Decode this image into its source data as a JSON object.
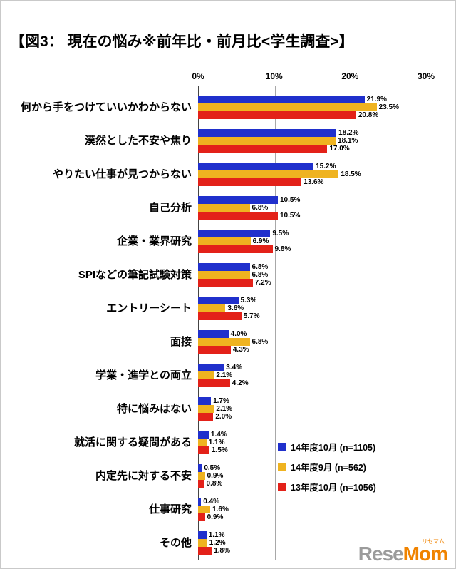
{
  "title": "【図3： 現在の悩み※前年比・前月比<学生調査>】",
  "chart_data": {
    "type": "bar",
    "orientation": "horizontal",
    "xlim": [
      0,
      30
    ],
    "xticks": [
      "0%",
      "10%",
      "20%",
      "30%"
    ],
    "grid": "vertical lines at 10/20/30",
    "legend_position": "inside-right",
    "categories": [
      "何から手をつけていいかわからない",
      "漠然とした不安や焦り",
      "やりたい仕事が見つからない",
      "自己分析",
      "企業・業界研究",
      "SPIなどの筆記試験対策",
      "エントリーシート",
      "面接",
      "学業・進学との両立",
      "特に悩みはない",
      "就活に関する疑問がある",
      "内定先に対する不安",
      "仕事研究",
      "その他"
    ],
    "series": [
      {
        "name": "14年度10月 (n=1105)",
        "color": "#2030cc",
        "values": [
          21.9,
          18.2,
          15.2,
          10.5,
          9.5,
          6.8,
          5.3,
          4.0,
          3.4,
          1.7,
          1.4,
          0.5,
          0.4,
          1.1
        ]
      },
      {
        "name": "14年度9月 (n=562)",
        "color": "#efb320",
        "values": [
          23.5,
          18.1,
          18.5,
          6.8,
          6.9,
          6.8,
          3.6,
          6.8,
          2.1,
          2.1,
          1.1,
          0.9,
          1.6,
          1.2
        ]
      },
      {
        "name": "13年度10月 (n=1056)",
        "color": "#e32119",
        "values": [
          20.8,
          17.0,
          13.6,
          10.5,
          9.8,
          7.2,
          5.7,
          4.3,
          4.2,
          2.0,
          1.5,
          0.8,
          0.9,
          1.8
        ]
      }
    ]
  },
  "logo": {
    "gray": "Rese",
    "orange": "Mom",
    "ruby": "リセマム"
  }
}
